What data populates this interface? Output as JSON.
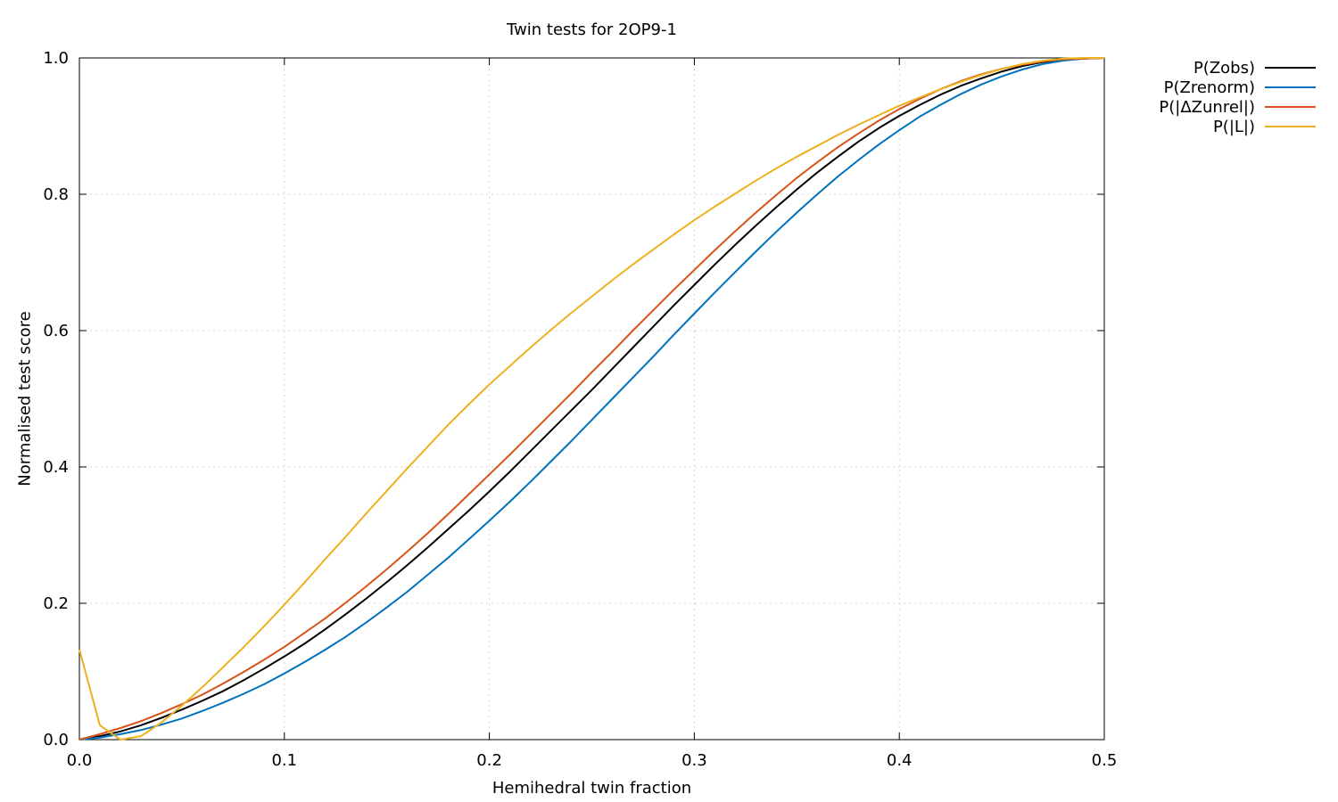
{
  "chart_data": {
    "type": "line",
    "title": "Twin tests for 2OP9-1",
    "xlabel": "Hemihedral twin fraction",
    "ylabel": "Normalised test score",
    "xlim": [
      0,
      0.5
    ],
    "ylim": [
      0,
      1
    ],
    "xticks": [
      "0.0",
      "0.1",
      "0.2",
      "0.3",
      "0.4",
      "0.5"
    ],
    "yticks": [
      "0.0",
      "0.2",
      "0.4",
      "0.6",
      "0.8",
      "1.0"
    ],
    "grid": true,
    "legend_position": "top-right outside",
    "series": [
      {
        "name": "P(Zobs)",
        "color": "#000000",
        "x": [
          0,
          0.01,
          0.02,
          0.03,
          0.04,
          0.05,
          0.06,
          0.07,
          0.08,
          0.09,
          0.1,
          0.11,
          0.12,
          0.13,
          0.14,
          0.15,
          0.16,
          0.17,
          0.18,
          0.19,
          0.2,
          0.21,
          0.22,
          0.23,
          0.24,
          0.25,
          0.26,
          0.27,
          0.28,
          0.29,
          0.3,
          0.31,
          0.32,
          0.33,
          0.34,
          0.35,
          0.36,
          0.37,
          0.38,
          0.39,
          0.4,
          0.41,
          0.42,
          0.43,
          0.44,
          0.45,
          0.46,
          0.47,
          0.48,
          0.49,
          0.5
        ],
        "y": [
          0.0,
          0.005,
          0.012,
          0.021,
          0.032,
          0.044,
          0.057,
          0.071,
          0.087,
          0.104,
          0.122,
          0.141,
          0.162,
          0.184,
          0.207,
          0.231,
          0.256,
          0.282,
          0.309,
          0.336,
          0.364,
          0.393,
          0.423,
          0.453,
          0.483,
          0.513,
          0.544,
          0.575,
          0.606,
          0.637,
          0.667,
          0.697,
          0.726,
          0.754,
          0.781,
          0.807,
          0.832,
          0.855,
          0.877,
          0.897,
          0.915,
          0.931,
          0.946,
          0.959,
          0.97,
          0.98,
          0.988,
          0.994,
          0.997,
          0.999,
          1.0
        ]
      },
      {
        "name": "P(Zrenorm)",
        "color": "#0072bd",
        "x": [
          0,
          0.01,
          0.02,
          0.03,
          0.04,
          0.05,
          0.06,
          0.07,
          0.08,
          0.09,
          0.1,
          0.11,
          0.12,
          0.13,
          0.14,
          0.15,
          0.16,
          0.17,
          0.18,
          0.19,
          0.2,
          0.21,
          0.22,
          0.23,
          0.24,
          0.25,
          0.26,
          0.27,
          0.28,
          0.29,
          0.3,
          0.31,
          0.32,
          0.33,
          0.34,
          0.35,
          0.36,
          0.37,
          0.38,
          0.39,
          0.4,
          0.41,
          0.42,
          0.43,
          0.44,
          0.45,
          0.46,
          0.47,
          0.48,
          0.49,
          0.5
        ],
        "y": [
          0.0,
          0.003,
          0.008,
          0.014,
          0.022,
          0.031,
          0.042,
          0.054,
          0.067,
          0.081,
          0.097,
          0.114,
          0.132,
          0.151,
          0.172,
          0.194,
          0.217,
          0.242,
          0.267,
          0.294,
          0.321,
          0.349,
          0.378,
          0.408,
          0.438,
          0.469,
          0.5,
          0.531,
          0.562,
          0.594,
          0.625,
          0.656,
          0.686,
          0.716,
          0.745,
          0.773,
          0.8,
          0.826,
          0.85,
          0.873,
          0.894,
          0.914,
          0.931,
          0.947,
          0.961,
          0.973,
          0.983,
          0.991,
          0.996,
          0.999,
          1.0
        ]
      },
      {
        "name": "P(|ΔZunrel|)",
        "color": "#d95319",
        "x": [
          0,
          0.01,
          0.02,
          0.03,
          0.04,
          0.05,
          0.06,
          0.07,
          0.08,
          0.09,
          0.1,
          0.11,
          0.12,
          0.13,
          0.14,
          0.15,
          0.16,
          0.17,
          0.18,
          0.19,
          0.2,
          0.21,
          0.22,
          0.23,
          0.24,
          0.25,
          0.26,
          0.27,
          0.28,
          0.29,
          0.3,
          0.31,
          0.32,
          0.33,
          0.34,
          0.35,
          0.36,
          0.37,
          0.38,
          0.39,
          0.4,
          0.41,
          0.42,
          0.43,
          0.44,
          0.45,
          0.46,
          0.47,
          0.48,
          0.49,
          0.5
        ],
        "y": [
          0.0,
          0.008,
          0.017,
          0.027,
          0.039,
          0.052,
          0.066,
          0.082,
          0.099,
          0.117,
          0.136,
          0.157,
          0.178,
          0.201,
          0.225,
          0.25,
          0.276,
          0.303,
          0.331,
          0.36,
          0.389,
          0.418,
          0.448,
          0.478,
          0.508,
          0.539,
          0.569,
          0.6,
          0.63,
          0.66,
          0.689,
          0.718,
          0.746,
          0.773,
          0.799,
          0.824,
          0.847,
          0.869,
          0.889,
          0.908,
          0.925,
          0.94,
          0.954,
          0.966,
          0.976,
          0.984,
          0.99,
          0.995,
          0.998,
          0.999,
          1.0
        ]
      },
      {
        "name": "P(|L|)",
        "color": "#edb120",
        "x": [
          0,
          0.01,
          0.02,
          0.03,
          0.04,
          0.05,
          0.06,
          0.07,
          0.08,
          0.09,
          0.1,
          0.11,
          0.12,
          0.13,
          0.14,
          0.15,
          0.16,
          0.17,
          0.18,
          0.19,
          0.2,
          0.21,
          0.22,
          0.23,
          0.24,
          0.25,
          0.26,
          0.27,
          0.28,
          0.29,
          0.3,
          0.31,
          0.32,
          0.33,
          0.34,
          0.35,
          0.36,
          0.37,
          0.38,
          0.39,
          0.4,
          0.41,
          0.42,
          0.43,
          0.44,
          0.45,
          0.46,
          0.47,
          0.48,
          0.49,
          0.5
        ],
        "y": [
          0.132,
          0.021,
          0.0,
          0.005,
          0.025,
          0.05,
          0.077,
          0.106,
          0.135,
          0.166,
          0.198,
          0.231,
          0.265,
          0.298,
          0.332,
          0.365,
          0.398,
          0.43,
          0.462,
          0.492,
          0.521,
          0.548,
          0.575,
          0.601,
          0.626,
          0.65,
          0.674,
          0.697,
          0.719,
          0.741,
          0.762,
          0.782,
          0.801,
          0.82,
          0.838,
          0.855,
          0.871,
          0.887,
          0.902,
          0.916,
          0.93,
          0.942,
          0.954,
          0.965,
          0.975,
          0.984,
          0.991,
          0.996,
          0.999,
          1.0,
          1.0
        ]
      }
    ]
  }
}
